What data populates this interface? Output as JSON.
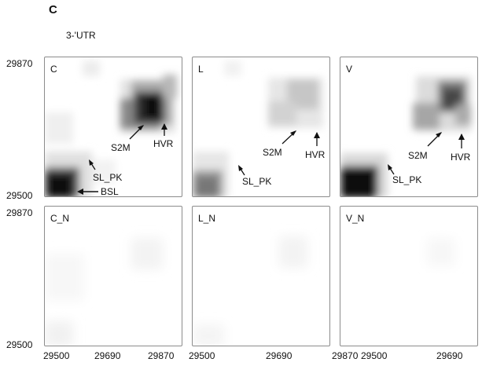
{
  "figure": {
    "panel_letter": "C",
    "subtitle": "3-'UTR"
  },
  "y_axis": {
    "top_row": {
      "max": "29870",
      "min": "29500"
    },
    "bottom_row": {
      "max": "29870",
      "min": "29500"
    }
  },
  "x_axis": {
    "col1": [
      "29500",
      "29690",
      "29870"
    ],
    "col2": [
      "29500",
      "29690",
      "29870"
    ],
    "col3": [
      "29500",
      "29690"
    ]
  },
  "panels": [
    {
      "id": "C",
      "label": "C",
      "annotations": {
        "s2m": "S2M",
        "hvr": "HVR",
        "sl_pk": "SL_PK",
        "bsl": "BSL"
      }
    },
    {
      "id": "L",
      "label": "L",
      "annotations": {
        "s2m": "S2M",
        "hvr": "HVR",
        "sl_pk": "SL_PK"
      }
    },
    {
      "id": "V",
      "label": "V",
      "annotations": {
        "s2m": "S2M",
        "hvr": "HVR",
        "sl_pk": "SL_PK"
      }
    },
    {
      "id": "C_N",
      "label": "C_N"
    },
    {
      "id": "L_N",
      "label": "L_N"
    },
    {
      "id": "V_N",
      "label": "V_N"
    }
  ]
}
